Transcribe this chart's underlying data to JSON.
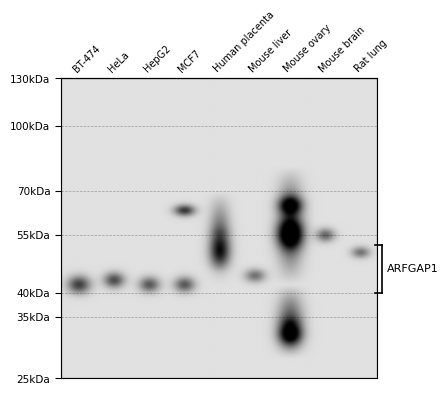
{
  "lane_labels": [
    "BT-474",
    "HeLa",
    "HepG2",
    "MCF7",
    "Human placenta",
    "Mouse liver",
    "Mouse ovary",
    "Mouse brain",
    "Rat lung"
  ],
  "mw_labels": [
    "130kDa",
    "100kDa",
    "70kDa",
    "55kDa",
    "40kDa",
    "35kDa",
    "25kDa"
  ],
  "mw_values": [
    130,
    100,
    70,
    55,
    40,
    35,
    25
  ],
  "protein_label": "ARFGAP1",
  "background_color": "#f0f0f0",
  "band_color_dark": "#1a1a1a",
  "band_color_mid": "#555555",
  "band_color_light": "#999999"
}
